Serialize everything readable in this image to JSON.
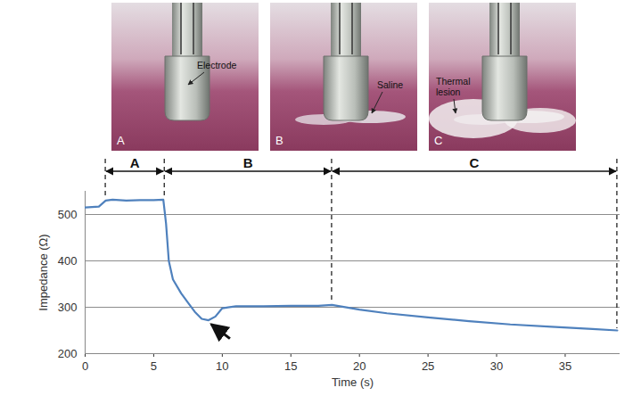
{
  "chart_data": {
    "type": "line",
    "xlabel": "Time (s)",
    "ylabel": "Impedance (Ω)",
    "x": [
      0,
      1,
      1.5,
      2,
      3,
      4,
      5,
      5.7,
      5.9,
      6.1,
      6.4,
      7,
      7.5,
      8,
      8.5,
      9,
      9.5,
      10,
      11,
      13,
      15,
      17,
      18,
      20,
      22,
      25,
      28,
      31,
      34,
      37,
      38.8
    ],
    "series": [
      {
        "name": "Impedance",
        "color": "#4f81bd",
        "values": [
          515,
          517,
          530,
          532,
          530,
          531,
          531,
          532,
          480,
          400,
          360,
          330,
          310,
          290,
          275,
          272,
          280,
          298,
          302,
          302,
          303,
          303,
          305,
          295,
          287,
          278,
          270,
          263,
          258,
          253,
          250
        ]
      }
    ],
    "xlim": [
      0,
      39
    ],
    "xticks": [
      0,
      5,
      10,
      15,
      20,
      25,
      30,
      35
    ],
    "ylim": [
      200,
      550
    ],
    "yticks": [
      200,
      300,
      400,
      500
    ],
    "grid": true,
    "phases": [
      {
        "label": "A",
        "start": 1.5,
        "end": 5.8
      },
      {
        "label": "B",
        "start": 5.8,
        "end": 18
      },
      {
        "label": "C",
        "start": 18,
        "end": 38.8
      }
    ],
    "annotations": [
      {
        "type": "arrow",
        "x": 8.9,
        "y": 270
      }
    ],
    "photos": [
      {
        "letter": "A",
        "label": "Electrode"
      },
      {
        "letter": "B",
        "label": "Saline"
      },
      {
        "letter": "C",
        "label": "Thermal lesion"
      }
    ]
  }
}
